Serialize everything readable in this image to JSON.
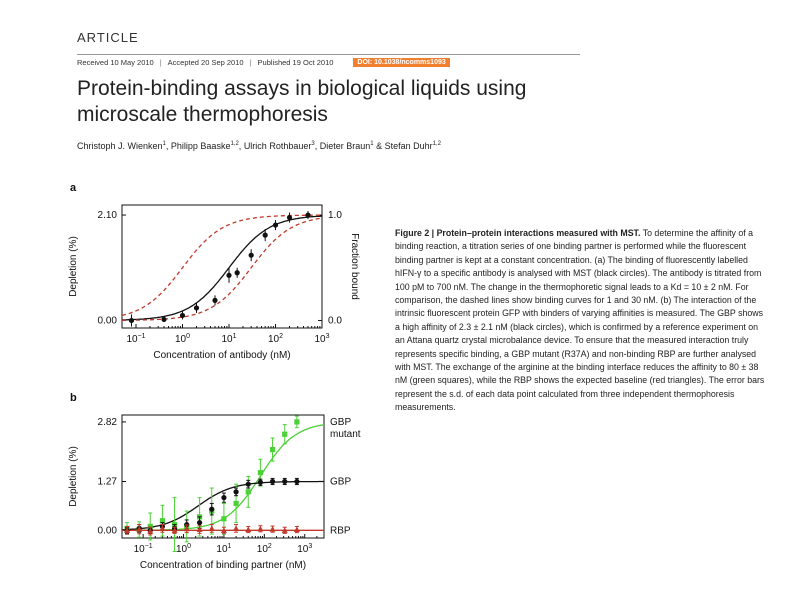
{
  "article": {
    "section": "ARTICLE",
    "received": "Received 10 May 2010",
    "accepted": "Accepted 20 Sep 2010",
    "published": "Published 19 Oct 2010",
    "doi": "DOI: 10.1038/ncomms1093",
    "title_line1": "Protein-binding assays in biological liquids using",
    "title_line2": "microscale thermophoresis",
    "authors": [
      {
        "name": "Christoph J. Wienken",
        "aff": "1"
      },
      {
        "name": "Philipp Baaske",
        "aff": "1,2"
      },
      {
        "name": "Ulrich Rothbauer",
        "aff": "3"
      },
      {
        "name": "Dieter Braun",
        "aff": "1"
      },
      {
        "name": "Stefan Duhr",
        "aff": "1,2"
      }
    ],
    "author_amp": "&"
  },
  "caption": {
    "heading": "Figure 2 | Protein–protein interactions measured with MST.",
    "text": " To determine the affinity of a binding reaction, a titration series of one binding partner is performed while the fluorescent binding partner is kept at a constant concentration. (a) The binding of fluorescently labelled hIFN-γ to a specific antibody is analysed with MST (black circles). The antibody is titrated from 100 pM to 700 nM. The change in the thermophoretic signal leads to a Kd = 10 ± 2 nM. For comparison, the dashed lines show binding curves for 1 and 30 nM. (b) The interaction of the intrinsic fluorescent protein GFP with binders of varying affinities is measured. The GBP shows a high affinity of 2.3 ± 2.1 nM (black circles), which is confirmed by a reference experiment on an Attana quartz crystal microbalance device. To ensure that the measured interaction truly represents specific binding, a GBP mutant (R37A) and non-binding RBP are further analysed with MST. The exchange of the arginine at the binding interface reduces the affinity to 80 ± 38 nM (green squares), while the RBP shows the expected baseline (red triangles). The error bars represent the s.d. of each data point calculated from three independent thermophoresis measurements."
  },
  "colors": {
    "black_series": "#111111",
    "green_series": "#4cd137",
    "red_series": "#c0392b",
    "doi_badge": "#f08030"
  },
  "chart_data": [
    {
      "panel": "a",
      "type": "scatter",
      "xlabel": "Concentration of antibody (nM)",
      "ylabel": "Depletion (%)",
      "ylabel_right": "Fraction bound",
      "xscale": "log",
      "xlim": [
        0.05,
        1000
      ],
      "ylim": [
        -0.15,
        2.3
      ],
      "x_ticks": [
        "10−1",
        "100",
        "101",
        "102",
        "103"
      ],
      "y_ticks_left": [
        "0.00",
        "2.10"
      ],
      "y_ticks_right": [
        "0.0",
        "1.0"
      ],
      "grid": false,
      "series": [
        {
          "style": "points",
          "color": "#111111",
          "x": [
            0.08,
            0.4,
            1.0,
            2.0,
            5.0,
            10,
            15,
            30,
            60,
            100,
            200,
            500
          ],
          "y": [
            0.0,
            0.02,
            0.1,
            0.25,
            0.4,
            0.9,
            0.95,
            1.3,
            1.7,
            1.9,
            2.05,
            2.1
          ],
          "err": [
            0.12,
            0.05,
            0.08,
            0.1,
            0.1,
            0.15,
            0.1,
            0.12,
            0.12,
            0.1,
            0.1,
            0.08
          ]
        },
        {
          "style": "fit",
          "color": "#111111",
          "kd": 10,
          "top": 2.1
        },
        {
          "style": "dashed",
          "color": "#c0392b",
          "kd": 1,
          "top": 2.1
        },
        {
          "style": "dashed",
          "color": "#c0392b",
          "kd": 30,
          "top": 2.1
        }
      ]
    },
    {
      "panel": "b",
      "type": "scatter",
      "xlabel": "Concentration of binding partner (nM)",
      "ylabel": "Depletion (%)",
      "xscale": "log",
      "xlim": [
        0.03,
        3000
      ],
      "ylim": [
        -0.2,
        3.0
      ],
      "x_ticks": [
        "10−1",
        "100",
        "101",
        "102",
        "103"
      ],
      "y_ticks_left": [
        "0.00",
        "1.27",
        "2.82"
      ],
      "grid": false,
      "series": [
        {
          "name": "GBP mutant",
          "style": "points",
          "color": "#4cd137",
          "kd": 80,
          "top": 2.82,
          "x": [
            0.04,
            0.08,
            0.15,
            0.3,
            0.6,
            1.2,
            2.5,
            5,
            10,
            20,
            40,
            80,
            160,
            320,
            640
          ],
          "y": [
            0.05,
            0.02,
            0.1,
            0.25,
            0.15,
            0.1,
            0.35,
            0.5,
            0.3,
            0.7,
            1.0,
            1.5,
            2.1,
            2.5,
            2.82
          ],
          "err": [
            0.15,
            0.2,
            0.35,
            0.4,
            0.7,
            0.4,
            0.5,
            0.6,
            0.4,
            0.5,
            0.4,
            0.35,
            0.3,
            0.25,
            0.15
          ]
        },
        {
          "name": "GBP",
          "style": "points",
          "color": "#111111",
          "kd": 2.3,
          "top": 1.27,
          "x": [
            0.04,
            0.08,
            0.15,
            0.3,
            0.6,
            1.2,
            2.5,
            5,
            10,
            20,
            40,
            80,
            160,
            320,
            640
          ],
          "y": [
            0.0,
            0.05,
            0.0,
            0.1,
            0.05,
            0.15,
            0.2,
            0.55,
            0.85,
            1.0,
            1.2,
            1.25,
            1.27,
            1.27,
            1.27
          ],
          "err": [
            0.08,
            0.1,
            0.08,
            0.1,
            0.1,
            0.12,
            0.15,
            0.15,
            0.12,
            0.1,
            0.1,
            0.08,
            0.08,
            0.08,
            0.08
          ]
        },
        {
          "name": "RBP",
          "style": "points",
          "color": "#c0392b",
          "x": [
            0.04,
            0.08,
            0.15,
            0.3,
            0.6,
            1.2,
            2.5,
            5,
            10,
            20,
            40,
            80,
            160,
            320,
            640
          ],
          "y": [
            0.0,
            0.03,
            -0.02,
            0.05,
            0.0,
            0.04,
            0.02,
            0.05,
            0.0,
            0.05,
            0.02,
            0.04,
            0.03,
            0.0,
            0.02
          ],
          "err": [
            0.1,
            0.12,
            0.1,
            0.1,
            0.08,
            0.1,
            0.1,
            0.1,
            0.08,
            0.1,
            0.08,
            0.08,
            0.08,
            0.08,
            0.08
          ]
        }
      ]
    }
  ]
}
